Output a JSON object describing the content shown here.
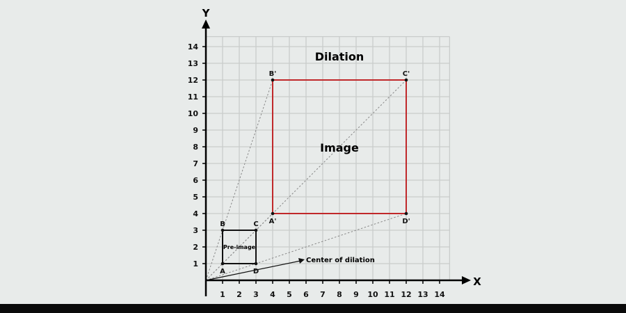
{
  "diagram": {
    "title": "Dilation",
    "x_axis_label": "X",
    "y_axis_label": "Y",
    "x_ticks": [
      1,
      2,
      3,
      4,
      5,
      6,
      7,
      8,
      9,
      10,
      11,
      12,
      13,
      14
    ],
    "y_ticks": [
      1,
      2,
      3,
      4,
      5,
      6,
      7,
      8,
      9,
      10,
      11,
      12,
      13,
      14
    ],
    "pre_image": {
      "label": "Pre-image",
      "color": "#111111",
      "points": [
        {
          "name": "A",
          "x": 1,
          "y": 1
        },
        {
          "name": "B",
          "x": 1,
          "y": 3
        },
        {
          "name": "C",
          "x": 3,
          "y": 3
        },
        {
          "name": "D",
          "x": 3,
          "y": 1
        }
      ]
    },
    "image": {
      "label": "Image",
      "color": "#c0282a",
      "points": [
        {
          "name": "A'",
          "x": 4,
          "y": 4
        },
        {
          "name": "B'",
          "x": 4,
          "y": 12
        },
        {
          "name": "C'",
          "x": 12,
          "y": 12
        },
        {
          "name": "D'",
          "x": 12,
          "y": 4
        }
      ]
    },
    "center": {
      "label": "Center of dilation",
      "x": 0,
      "y": 0
    }
  }
}
